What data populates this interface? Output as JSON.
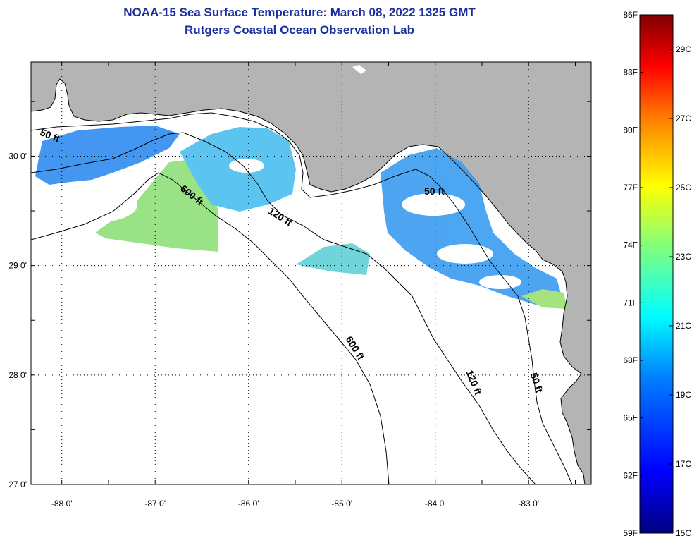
{
  "header": {
    "title": "NOAA-15 Sea Surface Temperature:  March 08, 2022 1325 GMT",
    "subtitle": "Rutgers Coastal Ocean Observation Lab"
  },
  "axes": {
    "x_ticks": [
      {
        "lon": -88,
        "label": "-88 0'"
      },
      {
        "lon": -87,
        "label": "-87 0'"
      },
      {
        "lon": -86,
        "label": "-86 0'"
      },
      {
        "lon": -85,
        "label": "-85 0'"
      },
      {
        "lon": -84,
        "label": "-84 0'"
      },
      {
        "lon": -83,
        "label": "-83 0'"
      }
    ],
    "y_ticks": [
      {
        "lat": 30,
        "label": "30 0'"
      },
      {
        "lat": 29,
        "label": "29 0'"
      },
      {
        "lat": 28,
        "label": "28 0'"
      },
      {
        "lat": 27,
        "label": "27 0'"
      }
    ],
    "lon_range": [
      -88.33,
      -82.33
    ],
    "lat_range": [
      27,
      30.86
    ]
  },
  "contour_labels": [
    {
      "text": "50 ft",
      "lon": -88.14,
      "lat": 30.16,
      "rotate": 22
    },
    {
      "text": "600 ft",
      "lon": -86.63,
      "lat": 29.62,
      "rotate": 38
    },
    {
      "text": "120 ft",
      "lon": -85.68,
      "lat": 29.42,
      "rotate": 32
    },
    {
      "text": "50 ft",
      "lon": -84.01,
      "lat": 29.65,
      "rotate": 0
    },
    {
      "text": "600 ft",
      "lon": -84.89,
      "lat": 28.23,
      "rotate": 58
    },
    {
      "text": "120 ft",
      "lon": -83.62,
      "lat": 27.92,
      "rotate": 68
    },
    {
      "text": "50 ft",
      "lon": -82.95,
      "lat": 27.92,
      "rotate": 72
    }
  ],
  "colorbar": {
    "f_labels": [
      "86F",
      "83F",
      "80F",
      "77F",
      "74F",
      "71F",
      "68F",
      "65F",
      "62F",
      "59F"
    ],
    "c_labels": [
      "29C",
      "27C",
      "25C",
      "23C",
      "21C",
      "19C",
      "17C",
      "15C"
    ],
    "colors": [
      "#00007f",
      "#0000ff",
      "#007fff",
      "#00ffff",
      "#7fff7f",
      "#ffff00",
      "#ff7f00",
      "#ff0000",
      "#7f0000"
    ]
  },
  "colors": {
    "land": "#b4b4b4",
    "ocean": "#ffffff",
    "title": "#1c2f9e"
  }
}
